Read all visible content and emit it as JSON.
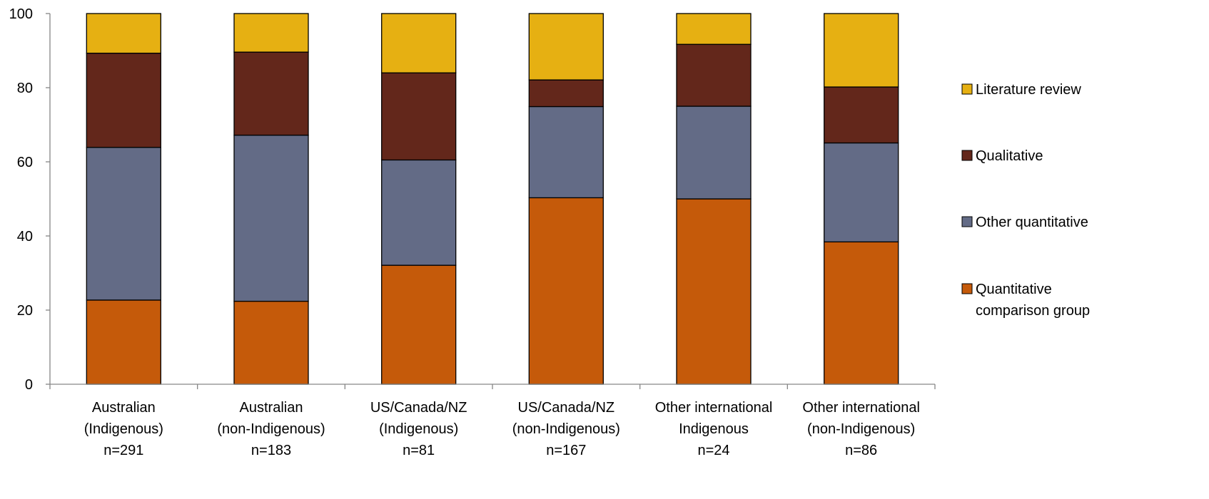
{
  "chart_data": {
    "type": "bar",
    "stacked": true,
    "categories": [
      [
        "Australian",
        "(Indigenous)",
        "n=291"
      ],
      [
        "Australian",
        "(non-Indigenous)",
        "n=183"
      ],
      [
        "US/Canada/NZ",
        "(Indigenous)",
        "n=81"
      ],
      [
        "US/Canada/NZ",
        "(non-Indigenous)",
        "n=167"
      ],
      [
        "Other international",
        "Indigenous",
        "n=24"
      ],
      [
        "Other international",
        "(non-Indigenous)",
        "n=86"
      ]
    ],
    "series": [
      {
        "name": "Quantitative comparison group",
        "legend_lines": [
          "Quantitative",
          "comparison group"
        ],
        "color": "#C55A0A",
        "values": [
          22.7,
          22.4,
          32.1,
          50.3,
          50.0,
          38.4
        ]
      },
      {
        "name": "Other quantitative",
        "legend_lines": [
          "Other quantitative"
        ],
        "color": "#636B86",
        "values": [
          41.2,
          44.8,
          28.4,
          24.6,
          25.0,
          26.7
        ]
      },
      {
        "name": "Qualitative",
        "legend_lines": [
          "Qualitative"
        ],
        "color": "#63271B",
        "values": [
          25.4,
          22.4,
          23.5,
          7.2,
          16.7,
          15.1
        ]
      },
      {
        "name": "Literature review",
        "legend_lines": [
          "Literature review"
        ],
        "color": "#E6B012",
        "values": [
          10.7,
          10.4,
          16.0,
          17.9,
          8.3,
          19.8
        ]
      }
    ],
    "ylim": [
      0,
      100
    ],
    "yticks": [
      0,
      20,
      40,
      60,
      80,
      100
    ],
    "ytick_labels": [
      "0",
      "20",
      "40",
      "60",
      "80",
      "100"
    ],
    "grid": false,
    "legend_position": "right",
    "legend_order": [
      "Literature review",
      "Qualitative",
      "Other quantitative",
      "Quantitative comparison group"
    ],
    "title": "",
    "xlabel": "",
    "ylabel": ""
  }
}
